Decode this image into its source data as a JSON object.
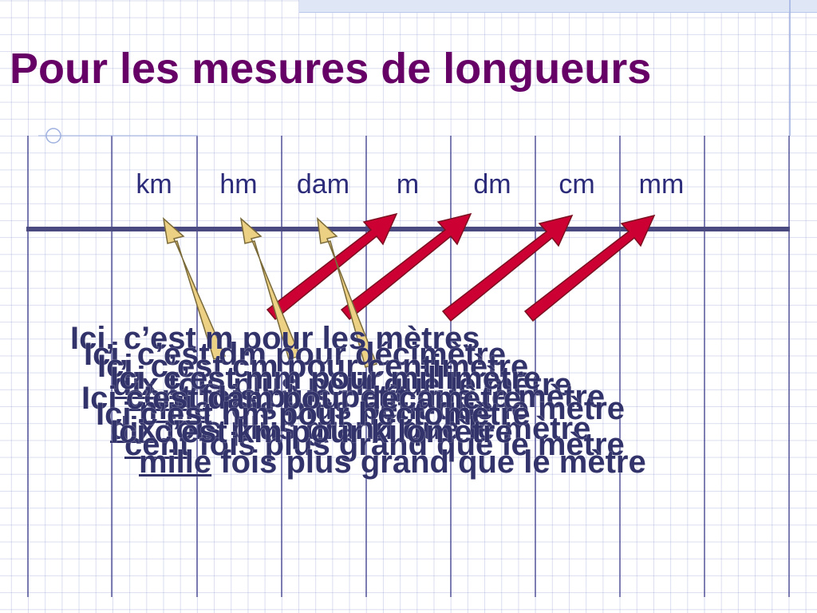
{
  "title": "Pour les mesures de longueurs",
  "units": [
    "km",
    "hm",
    "dam",
    "m",
    "dm",
    "cm",
    "mm"
  ],
  "messages": [
    {
      "line1": "Ici, c’est m pour les mètres",
      "word": "",
      "rest": ""
    },
    {
      "line1": "Ici, c’est dm pour décimètre",
      "word": "dix",
      "rest": " fois plus petit que le mètre"
    },
    {
      "line1": "Ici, c’est cm pour centimètre",
      "word": "cent",
      "rest": " fois plus petit que le mètre"
    },
    {
      "line1": "Ici, c’est mm pour millimètre",
      "word": "mille",
      "rest": " fois plus petit que le mètre"
    },
    {
      "line1": "Ici c’est dam pour décamètre",
      "word": "dix",
      "rest": " fois plus grand que le mètre"
    },
    {
      "line1": "Ici c’est hm pour hectomètre",
      "word": "cent",
      "rest": " fois plus grand que le mètre"
    },
    {
      "line1": "Ici c’est km pour kilomètre",
      "word": "mille",
      "rest": " fois plus grand que le mètre"
    }
  ]
}
